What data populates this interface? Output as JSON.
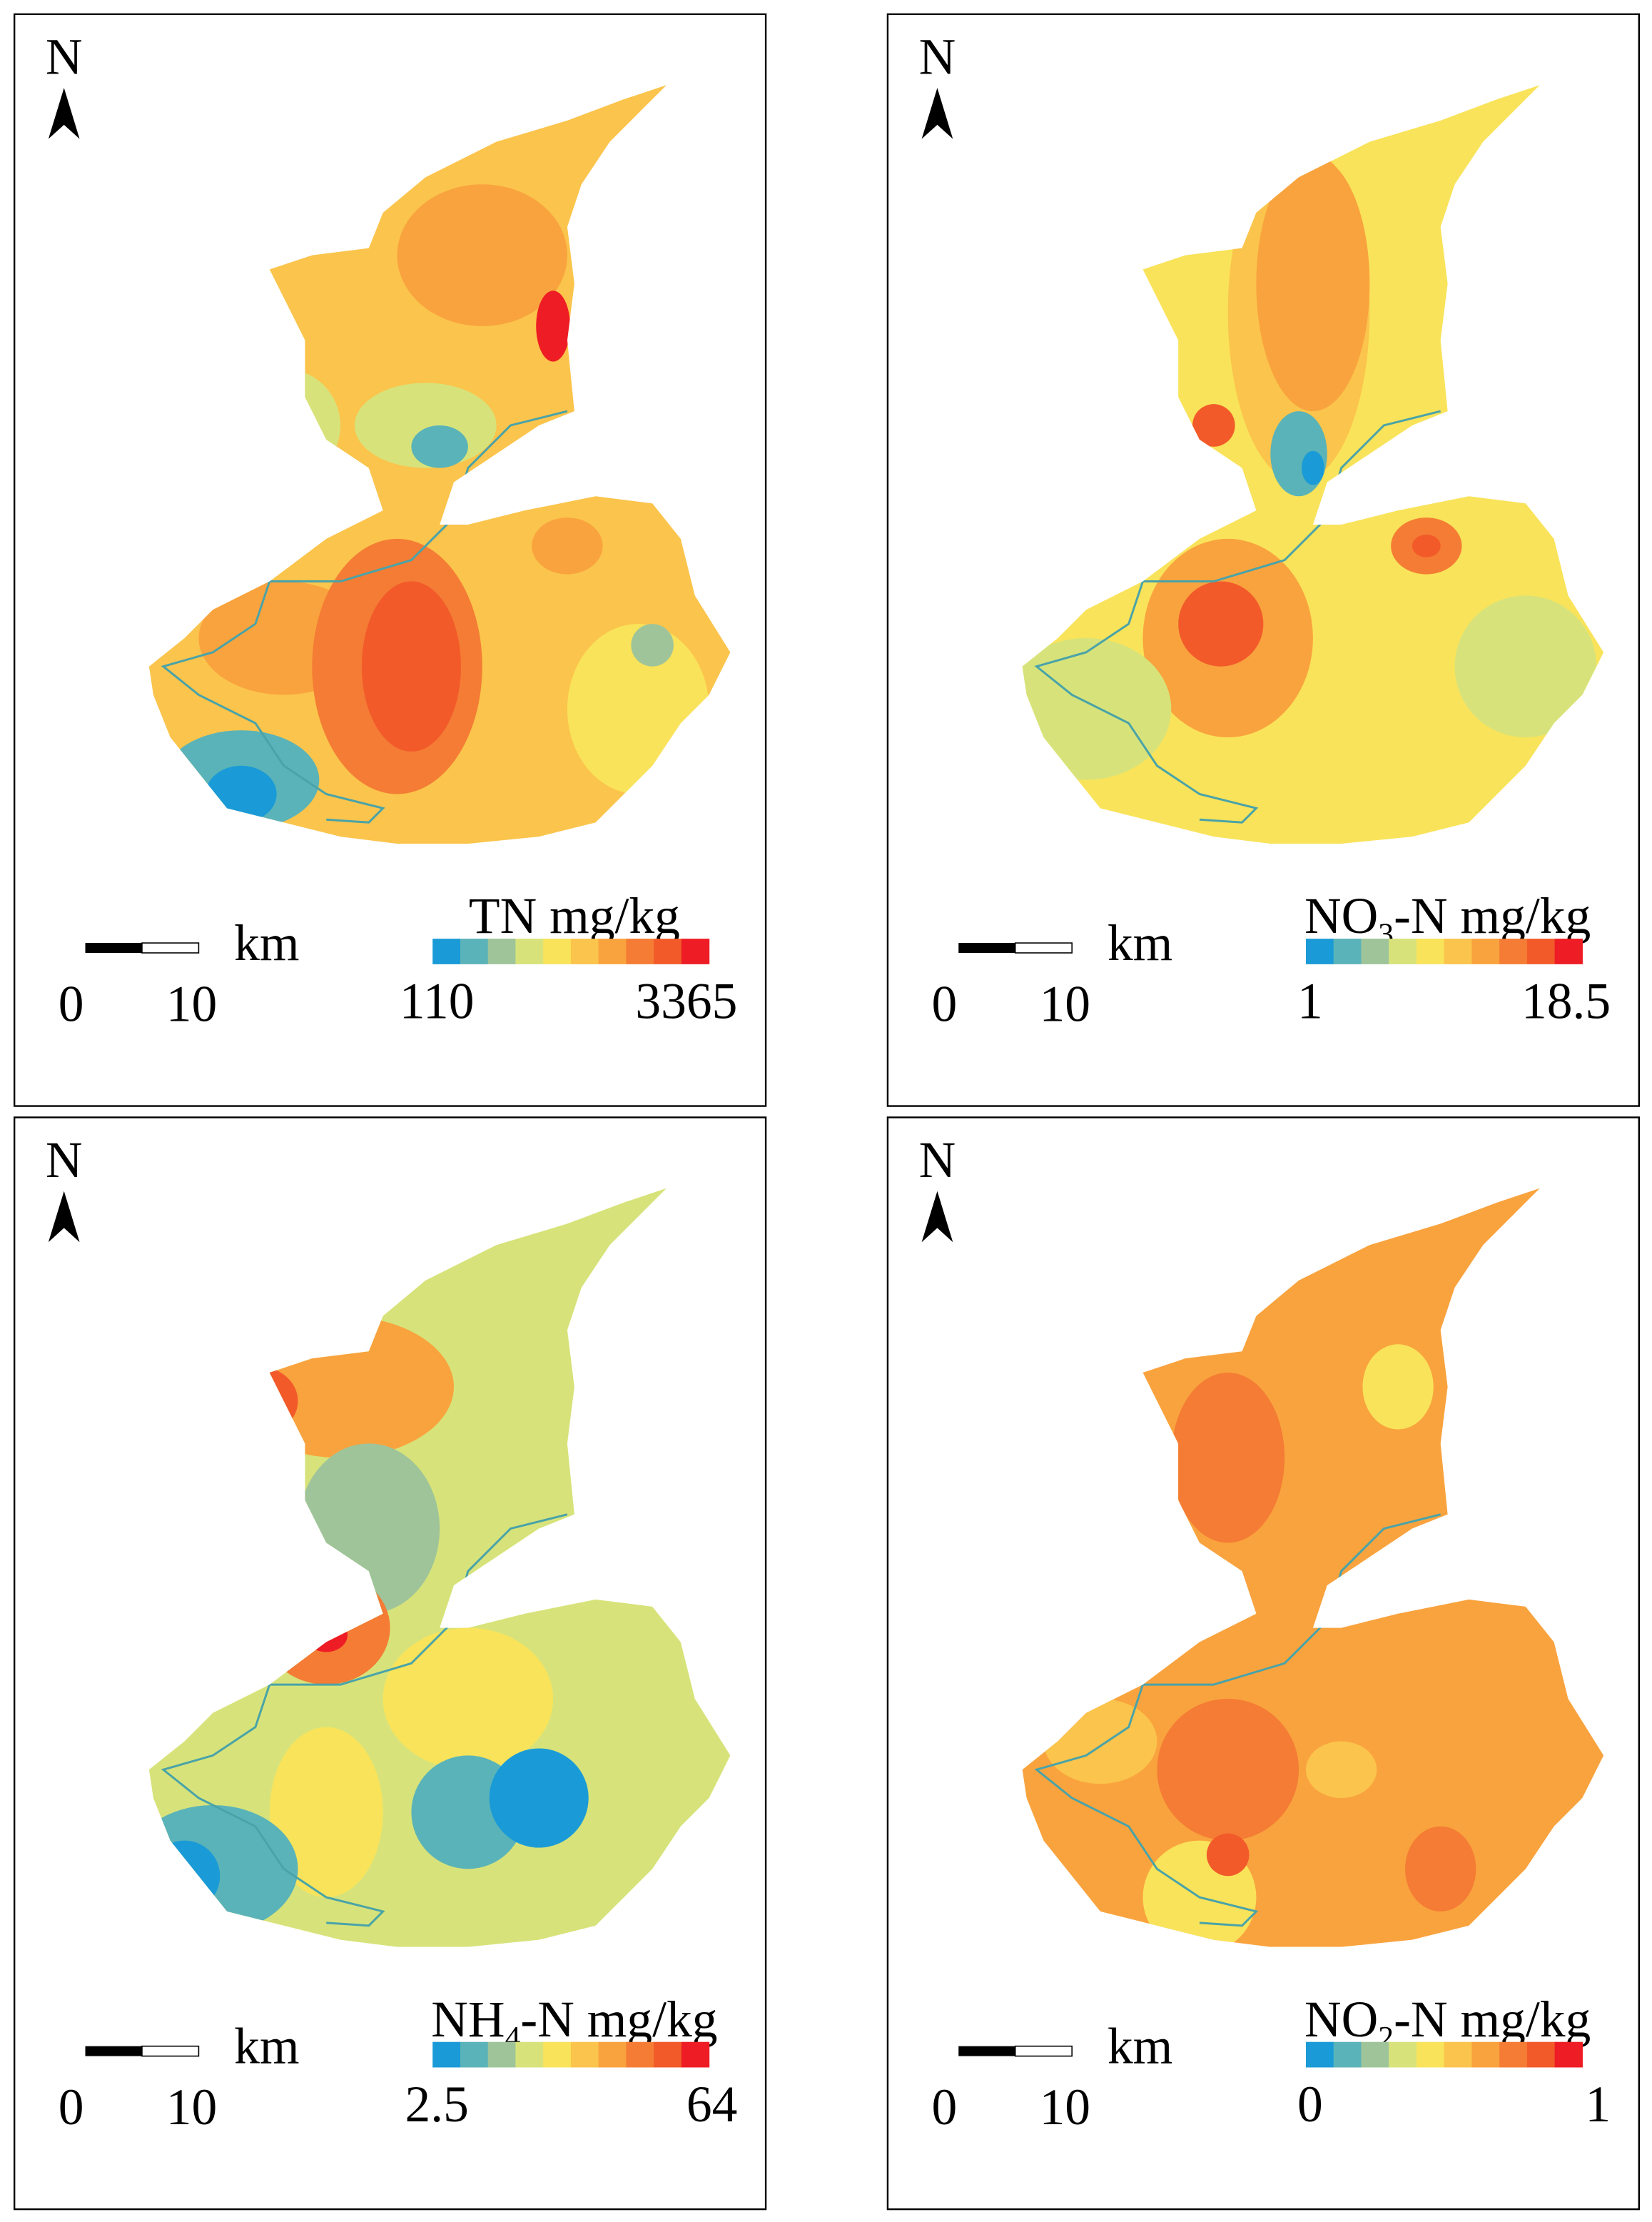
{
  "panels": [
    {
      "north": "N",
      "scale_unit": "km",
      "scale_labels": [
        0,
        10
      ],
      "legend_title": {
        "base": "TN mg/kg"
      },
      "legend_min": 110,
      "legend_max": 3365
    },
    {
      "north": "N",
      "scale_unit": "km",
      "scale_labels": [
        0,
        10
      ],
      "legend_title": {
        "base": "NO",
        "sub": "3",
        "rest": "-N mg/kg"
      },
      "legend_min": 1,
      "legend_max": 18.5
    },
    {
      "north": "N",
      "scale_unit": "km",
      "scale_labels": [
        0,
        10
      ],
      "legend_title": {
        "base": "NH",
        "sub": "4",
        "rest": "-N mg/kg"
      },
      "legend_min": 2.5,
      "legend_max": 64
    },
    {
      "north": "N",
      "scale_unit": "km",
      "scale_labels": [
        0,
        10
      ],
      "legend_title": {
        "base": "NO",
        "sub": "2",
        "rest": "-N mg/kg"
      },
      "legend_min": 0,
      "legend_max": 1
    }
  ]
}
